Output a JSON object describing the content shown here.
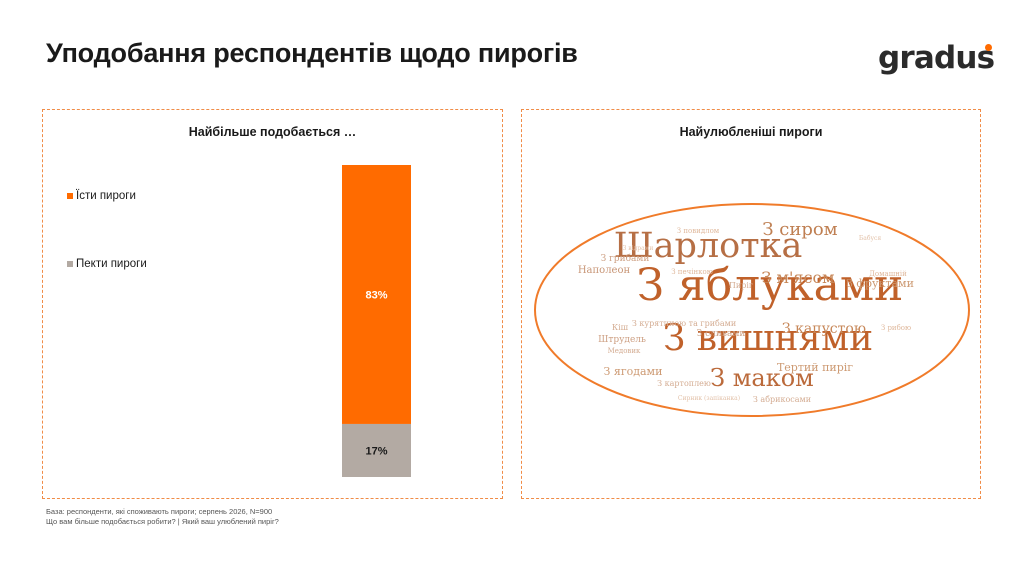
{
  "header": {
    "title": "Уподобання респондентів щодо пирогів",
    "logo_text": "gradus",
    "logo_dot_color": "#ff6b00"
  },
  "left_panel": {
    "title": "Найбільше подобається …"
  },
  "right_panel": {
    "title": "Найулюбленіші пироги"
  },
  "chart_data": [
    {
      "type": "bar",
      "stacked": true,
      "title": "Найбільше подобається …",
      "categories": [
        ""
      ],
      "series": [
        {
          "name": "Їсти пироги",
          "values": [
            83
          ],
          "label": "83%",
          "color": "#ff6b00"
        },
        {
          "name": "Пекти пироги",
          "values": [
            17
          ],
          "label": "17%",
          "color": "#b3aaa3"
        }
      ],
      "ylim": [
        0,
        100
      ],
      "legend": "left"
    },
    {
      "type": "wordcloud",
      "title": "Найулюбленіші пироги",
      "words": [
        {
          "text": "З яблуками",
          "weight": 10
        },
        {
          "text": "Шарлотка",
          "weight": 8
        },
        {
          "text": "З вишнями",
          "weight": 8
        },
        {
          "text": "З маком",
          "weight": 6
        },
        {
          "text": "З сиром",
          "weight": 5
        },
        {
          "text": "З м'ясом",
          "weight": 4.5
        },
        {
          "text": "З капустою",
          "weight": 4
        },
        {
          "text": "З фруктами",
          "weight": 3
        },
        {
          "text": "Тертий пиріг",
          "weight": 3
        },
        {
          "text": "З ягодами",
          "weight": 3
        },
        {
          "text": "Наполеон",
          "weight": 3
        },
        {
          "text": "Штрудель",
          "weight": 2.5
        },
        {
          "text": "З грибами",
          "weight": 2.5
        },
        {
          "text": "З сливами",
          "weight": 2.5
        },
        {
          "text": "З картоплею",
          "weight": 2.5
        },
        {
          "text": "З курятиною та грибами",
          "weight": 2.5
        },
        {
          "text": "З абрикосами",
          "weight": 2.5
        },
        {
          "text": "З повидлом",
          "weight": 2
        },
        {
          "text": "Кіш",
          "weight": 2
        },
        {
          "text": "Медовик",
          "weight": 2
        },
        {
          "text": "З печінкою",
          "weight": 2
        },
        {
          "text": "Домашній",
          "weight": 2
        },
        {
          "text": "З рибою",
          "weight": 2
        },
        {
          "text": "Пиріг",
          "weight": 2
        },
        {
          "text": "Бабуся",
          "weight": 1.5
        },
        {
          "text": "З відрами",
          "weight": 1.5
        },
        {
          "text": "Сирник (запіканка)",
          "weight": 1.5
        }
      ]
    }
  ],
  "footnote": {
    "line1": "База: респонденти, які споживають пироги; серпень 2026, N=900",
    "line2": "Що вам більше подобається робити? | Який ваш улюблений пиріг?"
  }
}
